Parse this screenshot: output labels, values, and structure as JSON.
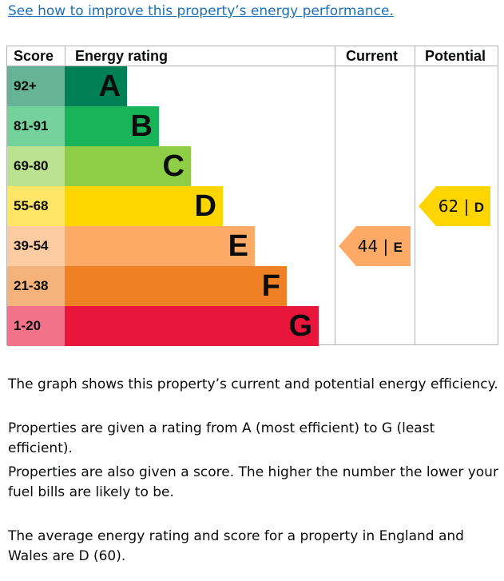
{
  "improve_link": "See how to improve this property’s energy performance.",
  "table": {
    "score_header": "Score",
    "rating_header": "Energy rating",
    "current_header": "Current",
    "potential_header": "Potential"
  },
  "bands": [
    {
      "score": "92+",
      "letter": "A",
      "color": "#008054",
      "score_bg": "#66b398"
    },
    {
      "score": "81-91",
      "letter": "B",
      "color": "#19b459",
      "score_bg": "#75d29b"
    },
    {
      "score": "69-80",
      "letter": "C",
      "color": "#8dce46",
      "score_bg": "#bbe290"
    },
    {
      "score": "55-68",
      "letter": "D",
      "color": "#ffd500",
      "score_bg": "#ffe666"
    },
    {
      "score": "39-54",
      "letter": "E",
      "color": "#fcaa65",
      "score_bg": "#fdcca3"
    },
    {
      "score": "21-38",
      "letter": "F",
      "color": "#ef8023",
      "score_bg": "#f5b37b"
    },
    {
      "score": "1-20",
      "letter": "G",
      "color": "#e9153b",
      "score_bg": "#f27389"
    }
  ],
  "current": {
    "score": "44",
    "separator": "|",
    "letter": "E",
    "color": "#fcaa65"
  },
  "potential": {
    "score": "62",
    "separator": "|",
    "letter": "D",
    "color": "#ffd500"
  },
  "paragraphs": {
    "p1": "The graph shows this property’s current and potential energy efficiency.",
    "p2": "Properties are given a rating from A (most efficient) to G (least efficient).",
    "p3": "Properties are also given a score. The higher the number the lower your fuel bills are likely to be.",
    "p4": "The average energy rating and score for a property in England and Wales are D (60)."
  }
}
